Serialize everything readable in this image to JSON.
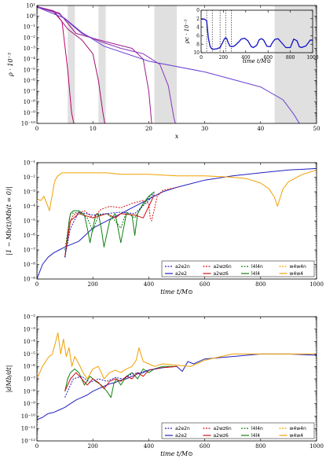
{
  "chart_data": [
    {
      "type": "line",
      "xlabel": "x",
      "ylabel": "ρ · 10⁻³",
      "xlim": [
        0,
        50
      ],
      "ylim_log10": [
        -10,
        1
      ],
      "x_ticks": [
        "0",
        "10",
        "20",
        "30",
        "40",
        "50"
      ],
      "y_ticks": [
        "10¹",
        "10⁰",
        "10⁻¹",
        "10⁻²",
        "10⁻³",
        "10⁻⁴",
        "10⁻⁵",
        "10⁻⁶",
        "10⁻⁷",
        "10⁻⁸",
        "10⁻⁹",
        "10⁻¹⁰"
      ],
      "shaded_x_ranges": [
        [
          5.5,
          6.8
        ],
        [
          11,
          12.3
        ],
        [
          21,
          25
        ],
        [
          42.5,
          50
        ]
      ],
      "series": [
        {
          "color": "#c0006a",
          "x": [
            0,
            3,
            4.5,
            5.5,
            6.2,
            6.8
          ],
          "log10_y": [
            0.85,
            0.4,
            -0.5,
            -5,
            -9,
            -10.5
          ]
        },
        {
          "color": "#a01070",
          "x": [
            0,
            3,
            5.5,
            8,
            10,
            11,
            11.8,
            12.3
          ],
          "log10_y": [
            0.9,
            0.5,
            -1.2,
            -2.2,
            -3.5,
            -6,
            -9,
            -10.5
          ]
        },
        {
          "color": "#9b1c8e",
          "x": [
            0,
            4,
            7,
            11,
            14,
            17,
            19,
            20,
            20.6
          ],
          "log10_y": [
            0.9,
            0.3,
            -1.6,
            -2.2,
            -2.6,
            -3,
            -4,
            -7,
            -10.5
          ]
        },
        {
          "color": "#8a34b8",
          "x": [
            0,
            4,
            8,
            11,
            15,
            19,
            22,
            23.5,
            24.5,
            25
          ],
          "log10_y": [
            0.9,
            0.2,
            -1.6,
            -2.3,
            -3,
            -3.5,
            -4.5,
            -6.5,
            -9.5,
            -10.5
          ]
        },
        {
          "color": "#6a3fd0",
          "x": [
            0,
            5,
            8,
            12,
            20,
            30,
            40,
            44,
            46,
            47.5
          ],
          "log10_y": [
            0.85,
            -0.2,
            -1.5,
            -2.8,
            -4.2,
            -5.2,
            -6.6,
            -7.8,
            -9.2,
            -10.5
          ]
        }
      ],
      "inset": {
        "type": "line",
        "xlabel": "time t/M⊙",
        "ylabel": "ρc · 10⁻³",
        "xlim": [
          0,
          1000
        ],
        "ylim": [
          0,
          10
        ],
        "x_ticks": [
          "0",
          "200",
          "400",
          "600",
          "800",
          "1000"
        ],
        "y_ticks": [
          "0",
          "2",
          "4",
          "6",
          "8",
          "10"
        ],
        "dashed_x": [
          50,
          100,
          170,
          220,
          270
        ],
        "series": [
          {
            "color": "#1010c8",
            "x": [
              0,
              30,
              50,
              65,
              80,
              95,
              110,
              140,
              170,
              195,
              210,
              220,
              230,
              245,
              260,
              280,
              300,
              340,
              360,
              390,
              420,
              450,
              470,
              500,
              520,
              540,
              560,
              590,
              620,
              640,
              660,
              690,
              720,
              760,
              800,
              830,
              860,
              880,
              900,
              940,
              980,
              1000
            ],
            "y": [
              7.9,
              7.9,
              7.5,
              3.5,
              1.5,
              0.9,
              0.8,
              0.9,
              1.2,
              2.5,
              3.3,
              3.5,
              3.3,
              2.2,
              1.5,
              1.4,
              1.6,
              2.6,
              3.2,
              3.4,
              2.8,
              1.4,
              1.2,
              1.8,
              3,
              3.3,
              3,
              1.5,
              1.4,
              2.4,
              3.1,
              3.3,
              2.4,
              1.2,
              1.2,
              3.2,
              2.8,
              1.4,
              1.2,
              1.6,
              3,
              2.9
            ]
          }
        ]
      }
    },
    {
      "type": "line",
      "xlabel": "time t/M⊙",
      "ylabel": "|1 − Mb(t)/Mb(t = 0)|",
      "xlim": [
        0,
        1000
      ],
      "ylim_log10": [
        -9,
        -1
      ],
      "x_ticks": [
        "0",
        "200",
        "400",
        "600",
        "800",
        "1000"
      ],
      "y_ticks": [
        "10⁻¹",
        "10⁻²",
        "10⁻³",
        "10⁻⁴",
        "10⁻⁵",
        "10⁻⁶",
        "10⁻⁷",
        "10⁻⁸",
        "10⁻⁹"
      ],
      "legend_position": "lower-right",
      "legend": [
        {
          "label": "a2e2n",
          "color": "#2020c0",
          "dash": "2,1.5"
        },
        {
          "label": "a2e2",
          "color": "#2020c0",
          "dash": ""
        },
        {
          "label": "a2wz6n",
          "color": "#d01010",
          "dash": "2,1.5"
        },
        {
          "label": "a2wz6",
          "color": "#d01010",
          "dash": ""
        },
        {
          "label": "l4l4n",
          "color": "#108010",
          "dash": "2,1.5"
        },
        {
          "label": "l4l4",
          "color": "#108010",
          "dash": ""
        },
        {
          "label": "w4w4n",
          "color": "#f0a000",
          "dash": "2,1.5"
        },
        {
          "label": "w4w4",
          "color": "#f0a000",
          "dash": ""
        }
      ],
      "series": [
        {
          "name": "a2e2",
          "color": "#2020c0",
          "dash": "",
          "x": [
            0,
            20,
            40,
            60,
            80,
            100,
            150,
            200,
            300,
            400,
            450,
            500,
            600,
            700,
            800,
            900,
            1000
          ],
          "log10_y": [
            -9,
            -8,
            -7.5,
            -7.2,
            -7,
            -6.8,
            -6.4,
            -5.5,
            -4.5,
            -3.5,
            -3,
            -2.7,
            -2.2,
            -1.9,
            -1.7,
            -1.5,
            -1.4
          ]
        },
        {
          "name": "w4w4",
          "color": "#f0a000",
          "dash": "",
          "x": [
            0,
            15,
            25,
            35,
            45,
            50,
            55,
            60,
            65,
            75,
            90,
            100,
            120,
            150,
            200,
            250,
            300,
            400,
            500,
            600,
            700,
            750,
            800,
            830,
            850,
            860,
            870,
            880,
            900,
            950,
            1000
          ],
          "log10_y": [
            -3.5,
            -3.6,
            -3.3,
            -3.8,
            -4.3,
            -3.7,
            -3.2,
            -2.6,
            -2.2,
            -1.9,
            -1.7,
            -1.7,
            -1.7,
            -1.7,
            -1.7,
            -1.7,
            -1.8,
            -1.8,
            -1.9,
            -1.9,
            -2,
            -2.1,
            -2.4,
            -2.8,
            -3.4,
            -4,
            -3.4,
            -2.8,
            -2.3,
            -1.8,
            -1.5
          ]
        },
        {
          "name": "l4l4",
          "color": "#108010",
          "dash": "",
          "x": [
            100,
            110,
            115,
            120,
            130,
            150,
            170,
            180,
            190,
            200,
            210,
            220,
            230,
            240,
            260,
            280,
            290,
            300,
            320,
            340,
            350,
            360,
            380,
            400,
            420
          ],
          "log10_y": [
            -7.5,
            -6,
            -5,
            -4.5,
            -4.3,
            -4.3,
            -4.6,
            -5.5,
            -6.5,
            -5.5,
            -4.6,
            -4.5,
            -5.5,
            -6.8,
            -5,
            -4.5,
            -5.5,
            -6.5,
            -4.5,
            -4.6,
            -6,
            -4.5,
            -3.8,
            -3.3,
            -3
          ]
        },
        {
          "name": "a2wz6",
          "color": "#d01010",
          "dash": "",
          "x": [
            100,
            120,
            150,
            200,
            250,
            280,
            300,
            350,
            380,
            400,
            420
          ],
          "log10_y": [
            -7.5,
            -5,
            -4.5,
            -4.8,
            -4.5,
            -4.8,
            -4.5,
            -4.6,
            -4.8,
            -4,
            -3.2
          ]
        },
        {
          "name": "a2wz6n",
          "color": "#d01010",
          "dash": "2,1.5",
          "x": [
            100,
            115,
            130,
            170,
            200,
            230,
            260,
            300,
            340,
            380,
            400,
            405,
            410,
            420,
            430,
            450,
            500
          ],
          "log10_y": [
            -7.5,
            -5.2,
            -4.6,
            -4.3,
            -4.8,
            -4.2,
            -4,
            -4.1,
            -3.8,
            -3.6,
            -3.8,
            -4.8,
            -5,
            -4.2,
            -3.3,
            -2.9,
            -2.7
          ]
        },
        {
          "name": "l4l4n",
          "color": "#108010",
          "dash": "2,1.5",
          "x": [
            100,
            120,
            150,
            180,
            200,
            220,
            250,
            280,
            300,
            320,
            350,
            380,
            400,
            420
          ],
          "log10_y": [
            -7,
            -4.5,
            -4.4,
            -4.8,
            -5.7,
            -4.6,
            -4.5,
            -5,
            -5.5,
            -4.4,
            -4.8,
            -3.9,
            -3.4,
            -3
          ]
        },
        {
          "name": "a2e2n",
          "color": "#2020c0",
          "dash": "2,1.5",
          "x": [
            100,
            120,
            150,
            200,
            250,
            300,
            350,
            400,
            420
          ],
          "log10_y": [
            -7.5,
            -5.5,
            -4.4,
            -4.6,
            -4.5,
            -4.4,
            -4.5,
            -3.6,
            -3.1
          ]
        }
      ]
    },
    {
      "type": "line",
      "xlabel": "time t/M⊙",
      "ylabel": "|dMb/dt|",
      "xlim": [
        0,
        1000
      ],
      "ylim_log10": [
        -12,
        -2
      ],
      "x_ticks": [
        "0",
        "200",
        "400",
        "600",
        "800",
        "1000"
      ],
      "y_ticks": [
        "10⁻²",
        "10⁻³",
        "10⁻⁴",
        "10⁻⁵",
        "10⁻⁶",
        "10⁻⁷",
        "10⁻⁸",
        "10⁻⁹",
        "10⁻¹⁰",
        "10⁻¹¹",
        "10⁻¹²"
      ],
      "legend_position": "lower-right",
      "series": [
        {
          "name": "a2e2",
          "color": "#2020c0",
          "dash": "",
          "x": [
            0,
            20,
            40,
            60,
            80,
            100,
            120,
            140,
            160,
            180,
            200,
            220,
            240,
            260,
            280,
            300,
            320,
            340,
            360,
            380,
            400,
            450,
            500,
            520,
            540,
            560,
            600,
            650,
            700,
            750,
            800,
            900,
            1000
          ],
          "log10_y": [
            -10.3,
            -10.1,
            -9.8,
            -9.7,
            -9.5,
            -9.3,
            -9.0,
            -8.7,
            -8.5,
            -8.3,
            -8,
            -7.8,
            -7.6,
            -7.4,
            -7.3,
            -7.1,
            -7,
            -6.8,
            -6.6,
            -6.5,
            -6.3,
            -6.1,
            -6,
            -6.4,
            -5.6,
            -5.8,
            -5.4,
            -5.3,
            -5.2,
            -5.1,
            -5,
            -5,
            -5.1
          ]
        },
        {
          "name": "w4w4",
          "color": "#f0a000",
          "dash": "",
          "x": [
            0,
            20,
            40,
            55,
            65,
            75,
            85,
            95,
            105,
            115,
            125,
            135,
            150,
            165,
            180,
            200,
            220,
            240,
            260,
            280,
            300,
            320,
            340,
            355,
            365,
            380,
            400,
            420,
            450,
            500,
            550,
            600,
            700,
            800,
            1000
          ],
          "log10_y": [
            -7,
            -6,
            -5.3,
            -5,
            -4.2,
            -3.3,
            -5,
            -3.8,
            -5.2,
            -4.5,
            -6,
            -5.2,
            -5.8,
            -6.5,
            -7,
            -6.2,
            -6,
            -7,
            -6.5,
            -6.3,
            -6.5,
            -6.2,
            -6,
            -5.5,
            -4.5,
            -5.6,
            -5.8,
            -6,
            -5.8,
            -5.9,
            -6,
            -5.5,
            -5,
            -5,
            -5
          ]
        },
        {
          "name": "l4l4",
          "color": "#108010",
          "dash": "",
          "x": [
            100,
            110,
            120,
            135,
            150,
            170,
            190,
            210,
            230,
            250,
            265,
            275,
            285,
            300,
            320,
            340,
            360,
            380,
            400,
            420,
            450,
            500
          ],
          "log10_y": [
            -8,
            -7,
            -6.5,
            -6.2,
            -6.5,
            -7.5,
            -6.8,
            -7.2,
            -7.5,
            -8,
            -8.5,
            -7.4,
            -7,
            -7.5,
            -6.8,
            -6.5,
            -7,
            -6.2,
            -6.5,
            -6.2,
            -6,
            -6
          ]
        },
        {
          "name": "a2wz6",
          "color": "#d01010",
          "dash": "",
          "x": [
            100,
            120,
            140,
            160,
            180,
            200,
            220,
            240,
            260,
            280,
            300,
            320,
            340,
            360,
            380,
            400,
            450,
            500
          ],
          "log10_y": [
            -8,
            -7,
            -6.5,
            -7,
            -7.5,
            -7,
            -7.3,
            -7.8,
            -7.2,
            -7,
            -7.2,
            -6.8,
            -7,
            -6.5,
            -6.8,
            -6.3,
            -6.1,
            -6
          ]
        },
        {
          "name": "a2e2n",
          "color": "#2020c0",
          "dash": "2,1.5",
          "x": [
            100,
            130,
            160,
            190,
            220,
            250,
            280,
            310,
            340,
            370,
            400,
            450
          ],
          "log10_y": [
            -8.5,
            -7,
            -6.8,
            -7.3,
            -7,
            -7.2,
            -6.9,
            -7,
            -6.6,
            -6.5,
            -6.3,
            -6.1
          ]
        }
      ]
    }
  ]
}
